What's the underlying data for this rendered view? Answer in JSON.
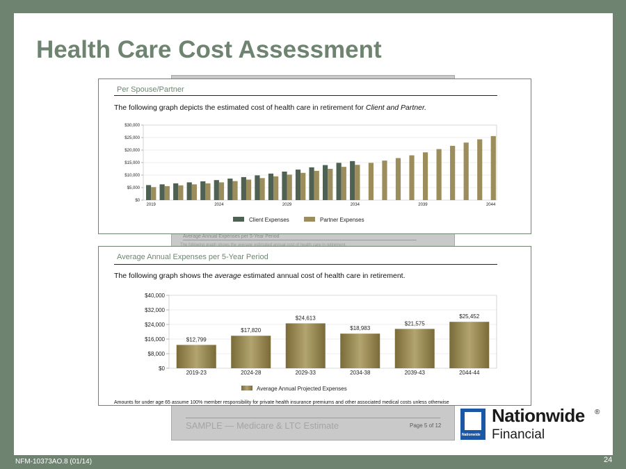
{
  "slide": {
    "title": "Health Care Cost Assessment",
    "footer_code": "NFM-10373AO.8 (01/14)",
    "page_number": "24",
    "background_color": "#6e8471",
    "title_color": "#6e8471"
  },
  "back_document": {
    "ghost_heading": "Average Annual Expenses per 5-Year Period",
    "ghost_text": "The following graph shows the average estimated annual cost of health care in retirement.",
    "footer_text": "SAMPLE — Medicare & LTC Estimate",
    "page_label": "Page 5 of 12"
  },
  "brand": {
    "name": "Nationwide",
    "registered": "®",
    "sub": "Financial",
    "logo_label": "Nationwide",
    "logo_color": "#1c57a5"
  },
  "chart_data": [
    {
      "type": "bar",
      "header": "Per Spouse/Partner",
      "description_prefix": "The following graph depicts the estimated cost of health care in retirement for ",
      "description_emphasis": "Client and Partner.",
      "x": [
        2019,
        2020,
        2021,
        2022,
        2023,
        2024,
        2025,
        2026,
        2027,
        2028,
        2029,
        2030,
        2031,
        2032,
        2033,
        2034,
        2035,
        2036,
        2037,
        2038,
        2039,
        2040,
        2041,
        2042,
        2043,
        2044
      ],
      "x_tick_labels": [
        "2019",
        "2024",
        "2029",
        "2034",
        "2039",
        "2044"
      ],
      "ylim": [
        0,
        30000
      ],
      "y_ticks": [
        0,
        5000,
        10000,
        15000,
        20000,
        25000,
        30000
      ],
      "y_tick_labels": [
        "$0",
        "$5,000",
        "$10,000",
        "$15,000",
        "$20,000",
        "$25,000",
        "$30,000"
      ],
      "grid": true,
      "legend_position": "bottom",
      "series": [
        {
          "name": "Client Expenses",
          "color": "#4f6152",
          "values": [
            6000,
            6300,
            6700,
            7100,
            7500,
            8000,
            8600,
            9200,
            9900,
            10600,
            11400,
            12200,
            13100,
            14000,
            14900,
            15600,
            null,
            null,
            null,
            null,
            null,
            null,
            null,
            null,
            null,
            null
          ]
        },
        {
          "name": "Partner Expenses",
          "color": "#9c8e5c",
          "values": [
            5200,
            5600,
            5900,
            6300,
            6700,
            7100,
            7600,
            8200,
            8800,
            9500,
            10200,
            10900,
            11700,
            12500,
            13300,
            14100,
            14900,
            15800,
            16800,
            17900,
            19100,
            20400,
            21700,
            23000,
            24300,
            25600
          ]
        }
      ]
    },
    {
      "type": "bar",
      "header": "Average Annual Expenses per 5-Year Period",
      "description_prefix": "The following graph shows the ",
      "description_emphasis": "average",
      "description_suffix": " estimated annual cost of health care in retirement.",
      "categories": [
        "2019-23",
        "2024-28",
        "2029-33",
        "2034-38",
        "2039-43",
        "2044-44"
      ],
      "ylim": [
        0,
        40000
      ],
      "y_ticks": [
        0,
        8000,
        16000,
        24000,
        32000,
        40000
      ],
      "y_tick_labels": [
        "$0",
        "$8,000",
        "$16,000",
        "$24,000",
        "$32,000",
        "$40,000"
      ],
      "grid": true,
      "legend_position": "bottom",
      "series": [
        {
          "name": "Average Annual Projected Expenses",
          "color": "#8c7d45",
          "values": [
            12799,
            17820,
            24613,
            18983,
            21575,
            25452
          ],
          "data_labels": [
            "$12,799",
            "$17,820",
            "$24,613",
            "$18,983",
            "$21,575",
            "$25,452"
          ]
        }
      ],
      "footnote": "Amounts for under age 65 assume 100% member responsibility for private health insurance premiums and other associated medical costs unless otherwise"
    }
  ]
}
